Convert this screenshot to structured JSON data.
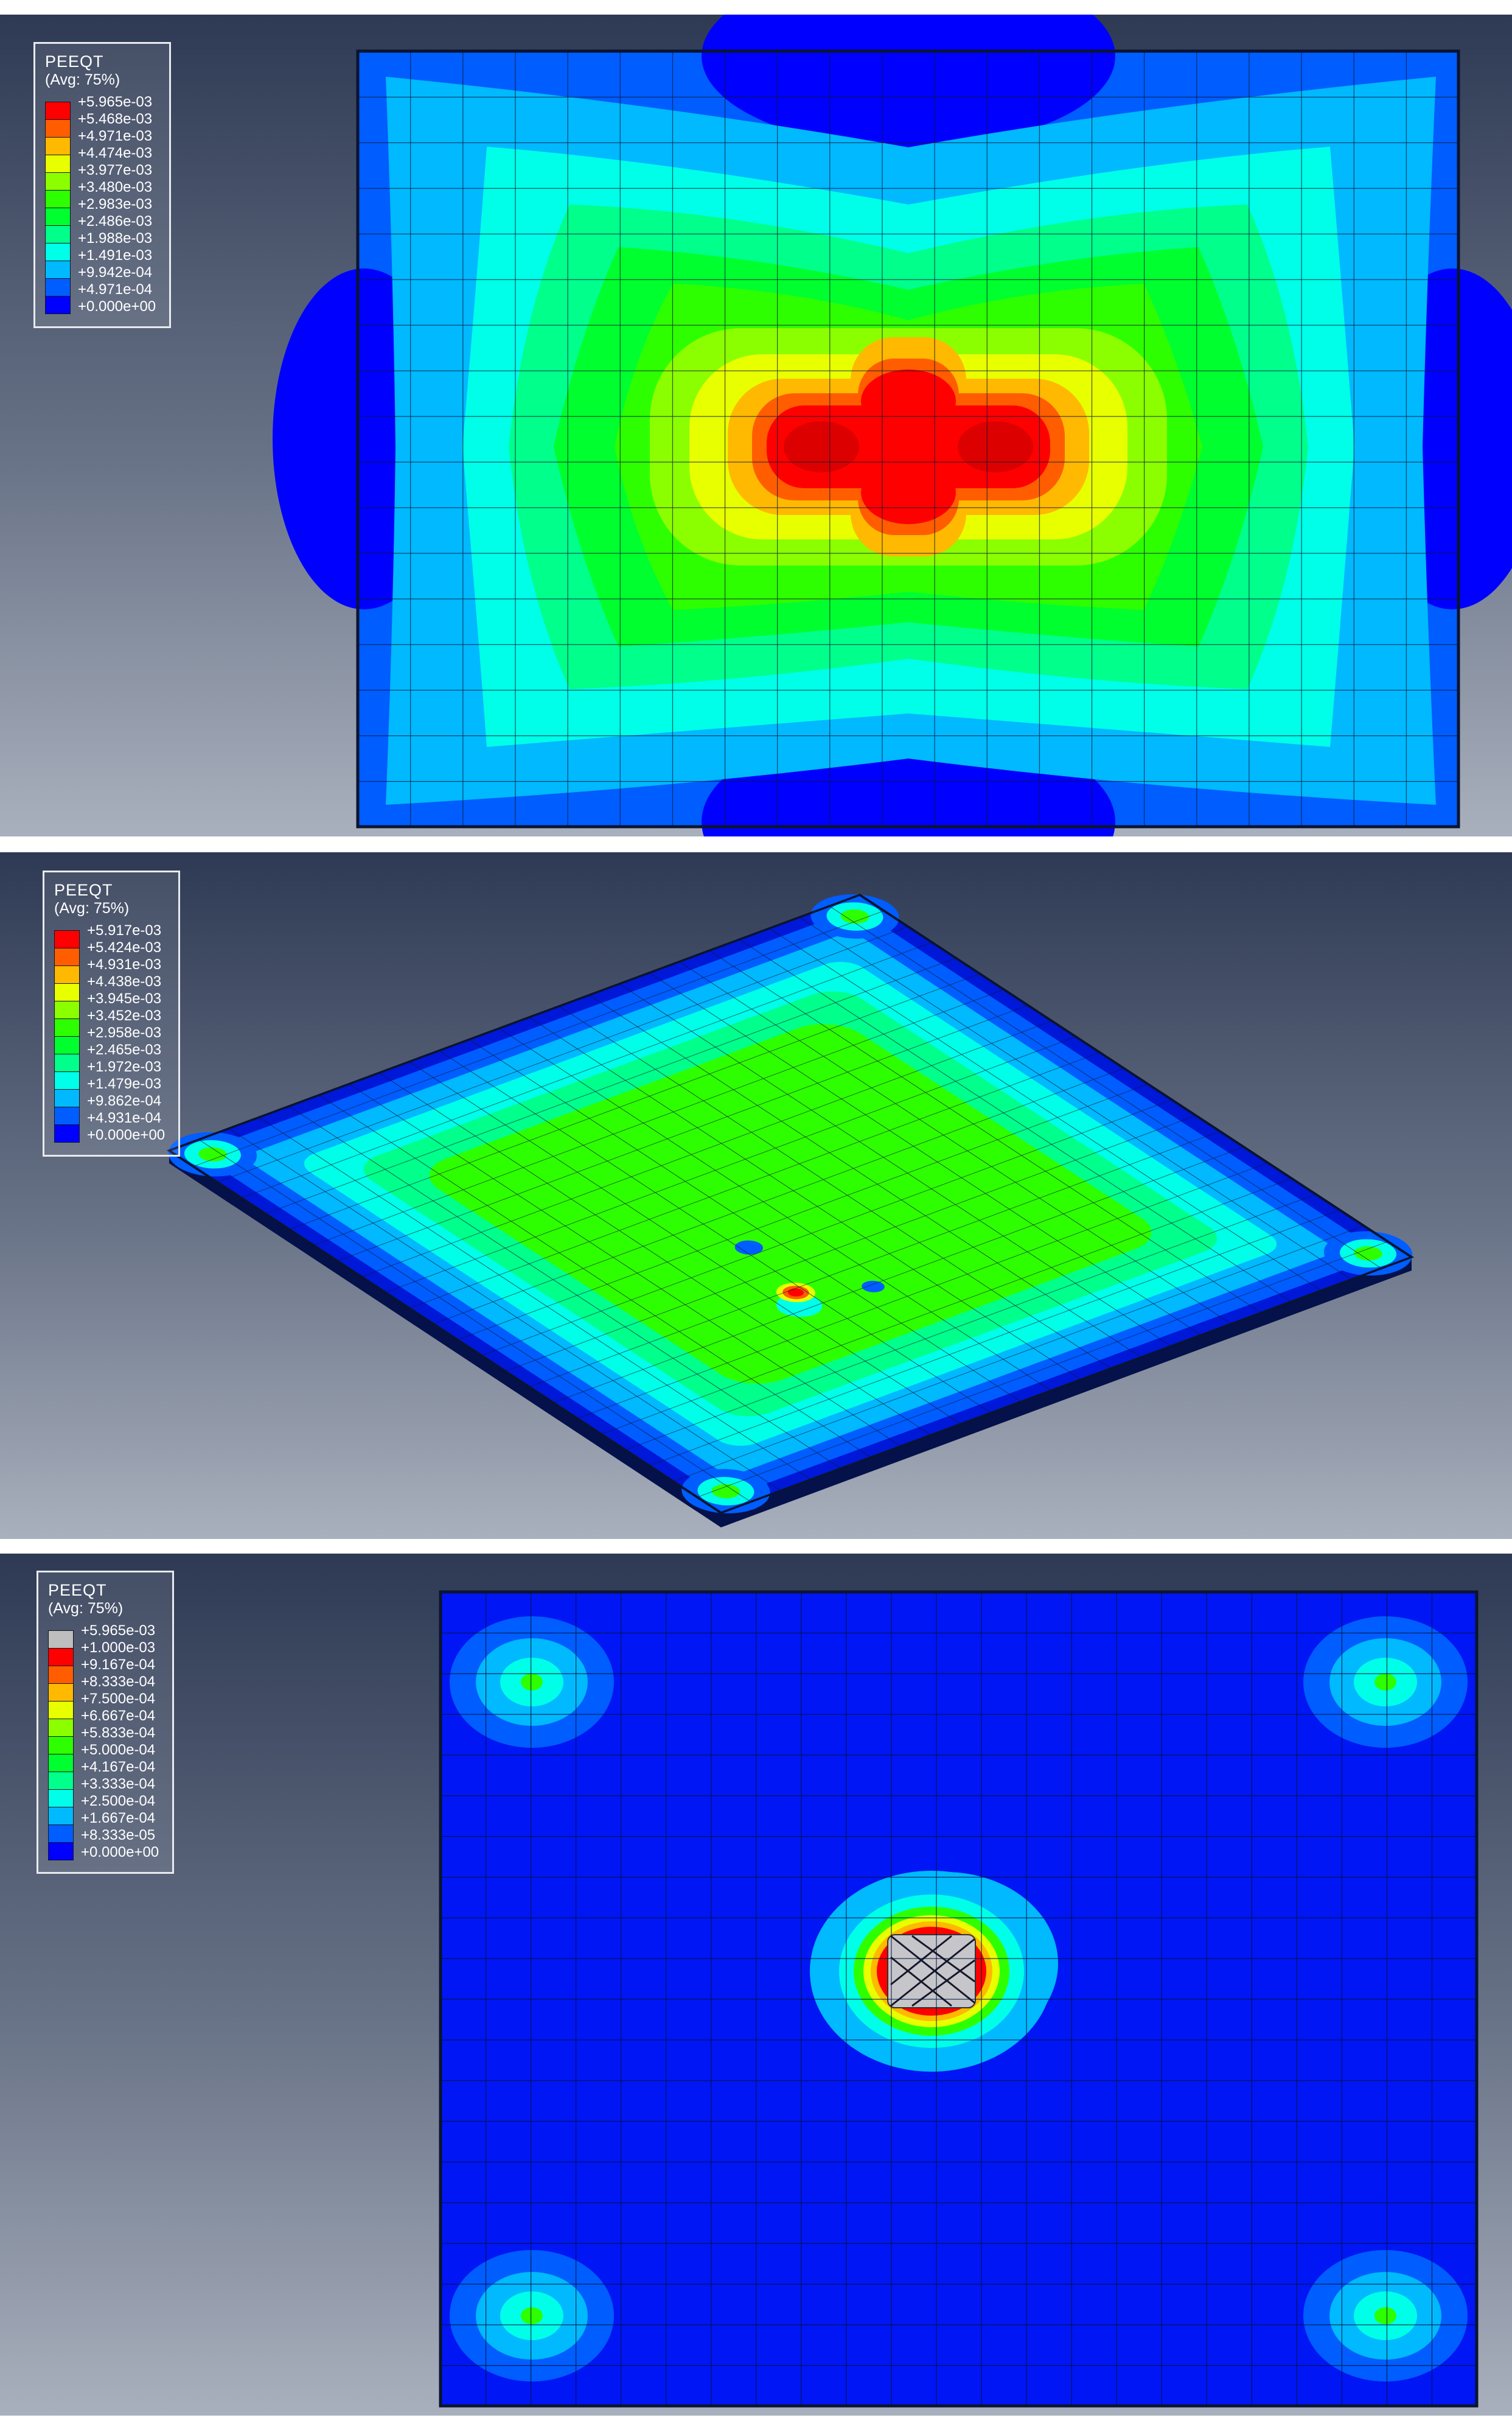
{
  "colors": {
    "band1": "#FF0000",
    "band2": "#FF5D00",
    "band3": "#FFB900",
    "band4": "#E8FF00",
    "band5": "#8BFF00",
    "band6": "#2EFF00",
    "band7": "#00FF2E",
    "band8": "#00FF8B",
    "band9": "#00FFE8",
    "band10": "#00B9FF",
    "band11": "#005DFF",
    "band12": "#0000FF",
    "above_max_grey": "#BEBEBE",
    "deep_red": "#DC0000",
    "plate_base_blue": "#0016F5",
    "slab_edge_blue": "#0018D8",
    "slab_side": "#04114A",
    "grey_patch": "#C6C6CA",
    "hatch_dark": "#16182A",
    "mesh_line": "#0A1833",
    "mesh_line_fine": "#00123A",
    "plate_border": "#0A1430",
    "background_top": "#2E3A54",
    "background_mid": "#6A7488",
    "background_bottom": "#A9B0BD",
    "legend_border": "#E8EAEE",
    "legend_bg": "rgba(255,255,255,0.10)",
    "legend_text": "#FFFFFF"
  },
  "panels": [
    {
      "legend": {
        "title": "PEEQT",
        "subtitle": "(Avg: 75%)",
        "swatch_colors": [
          "#FF0000",
          "#FF5D00",
          "#FFB900",
          "#E8FF00",
          "#8BFF00",
          "#2EFF00",
          "#00FF2E",
          "#00FF8B",
          "#00FFE8",
          "#00B9FF",
          "#005DFF",
          "#0000FF"
        ],
        "labels": [
          "+5.965e-03",
          "+5.468e-03",
          "+4.971e-03",
          "+4.474e-03",
          "+3.977e-03",
          "+3.480e-03",
          "+2.983e-03",
          "+2.486e-03",
          "+1.988e-03",
          "+1.491e-03",
          "+9.942e-04",
          "+4.971e-04",
          "+0.000e+00"
        ]
      }
    },
    {
      "legend": {
        "title": "PEEQT",
        "subtitle": "(Avg: 75%)",
        "swatch_colors": [
          "#FF0000",
          "#FF5D00",
          "#FFB900",
          "#E8FF00",
          "#8BFF00",
          "#2EFF00",
          "#00FF2E",
          "#00FF8B",
          "#00FFE8",
          "#00B9FF",
          "#005DFF",
          "#0000FF"
        ],
        "labels": [
          "+5.917e-03",
          "+5.424e-03",
          "+4.931e-03",
          "+4.438e-03",
          "+3.945e-03",
          "+3.452e-03",
          "+2.958e-03",
          "+2.465e-03",
          "+1.972e-03",
          "+1.479e-03",
          "+9.862e-04",
          "+4.931e-04",
          "+0.000e+00"
        ]
      }
    },
    {
      "legend": {
        "title": "PEEQT",
        "subtitle": "(Avg: 75%)",
        "swatch_colors": [
          "#BEBEBE",
          "#FF0000",
          "#FF5D00",
          "#FFB900",
          "#E8FF00",
          "#8BFF00",
          "#2EFF00",
          "#00FF2E",
          "#00FF8B",
          "#00FFE8",
          "#00B9FF",
          "#005DFF",
          "#0000FF"
        ],
        "labels": [
          "+5.965e-03",
          "+1.000e-03",
          "+9.167e-04",
          "+8.333e-04",
          "+7.500e-04",
          "+6.667e-04",
          "+5.833e-04",
          "+5.000e-04",
          "+4.167e-04",
          "+3.333e-04",
          "+2.500e-04",
          "+1.667e-04",
          "+8.333e-05",
          "+0.000e+00"
        ]
      }
    }
  ],
  "chart_data": [
    {
      "type": "heatmap",
      "title": "PEEQT",
      "subtitle": "(Avg: 75%)",
      "view": "plan view of slab, contour bands radiating from red hot spot at center toward corners",
      "max_value": 0.005965,
      "min_value": 0.0,
      "contour_levels": [
        0.0,
        0.0004971,
        0.0009942,
        0.001491,
        0.001988,
        0.002486,
        0.002983,
        0.00348,
        0.003977,
        0.004474,
        0.004971,
        0.005468,
        0.005965
      ],
      "palette_max_to_min": [
        "#FF0000",
        "#FF5D00",
        "#FFB900",
        "#E8FF00",
        "#8BFF00",
        "#2EFF00",
        "#00FF2E",
        "#00FF8B",
        "#00FFE8",
        "#00B9FF",
        "#005DFF",
        "#0000FF"
      ],
      "legend_position": "top-left"
    },
    {
      "type": "heatmap",
      "title": "PEEQT",
      "subtitle": "(Avg: 75%)",
      "view": "isometric view of slab, green plateau in middle, blue edges, small red spot near center",
      "max_value": 0.005917,
      "min_value": 0.0,
      "contour_levels": [
        0.0,
        0.0004931,
        0.0009862,
        0.001479,
        0.001972,
        0.002465,
        0.002958,
        0.003452,
        0.003945,
        0.004438,
        0.004931,
        0.005424,
        0.005917
      ],
      "palette_max_to_min": [
        "#FF0000",
        "#FF5D00",
        "#FFB900",
        "#E8FF00",
        "#8BFF00",
        "#2EFF00",
        "#00FF2E",
        "#00FF8B",
        "#00FFE8",
        "#00B9FF",
        "#005DFF",
        "#0000FF"
      ],
      "legend_position": "top-left"
    },
    {
      "type": "heatmap",
      "title": "PEEQT",
      "subtitle": "(Avg: 75%)",
      "view": "bottom view of slab with capped scale; grey zone above cap at center, hot spots at four corners",
      "max_value": 0.005965,
      "scale_cap": 0.001,
      "min_value": 0.0,
      "contour_levels": [
        0.0,
        8.333e-05,
        0.0001667,
        0.00025,
        0.0003333,
        0.0004167,
        0.0005,
        0.0005833,
        0.0006667,
        0.00075,
        0.0008333,
        0.0009167,
        0.001
      ],
      "above_cap_color": "#BEBEBE",
      "palette_max_to_min": [
        "#FF0000",
        "#FF5D00",
        "#FFB900",
        "#E8FF00",
        "#8BFF00",
        "#2EFF00",
        "#00FF2E",
        "#00FF8B",
        "#00FFE8",
        "#00B9FF",
        "#005DFF",
        "#0000FF"
      ],
      "legend_position": "top-left"
    }
  ]
}
